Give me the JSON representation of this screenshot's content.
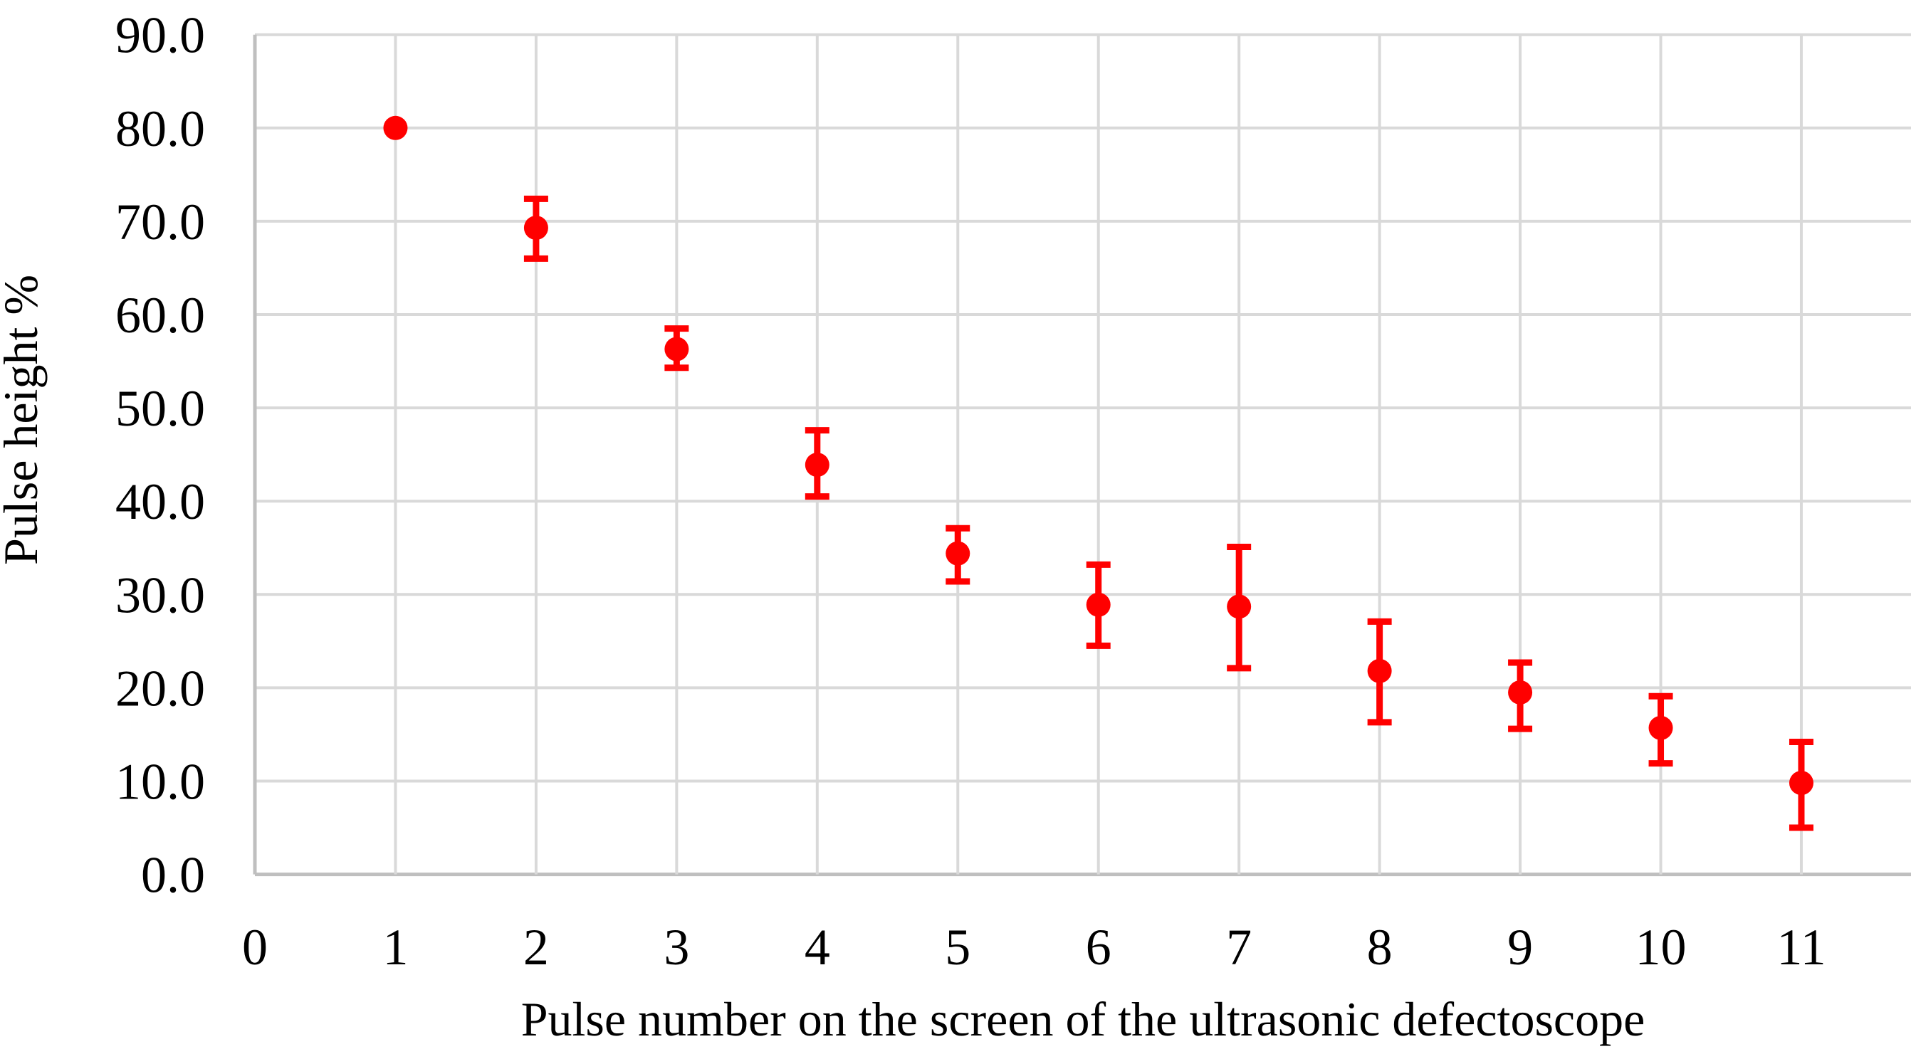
{
  "chart_data": {
    "type": "scatter",
    "title": "",
    "xlabel": "Pulse number on the screen of the ultrasonic defectoscope",
    "ylabel": "Pulse height %",
    "x_ticks": [
      0,
      1,
      2,
      3,
      4,
      5,
      6,
      7,
      8,
      9,
      10,
      11
    ],
    "y_ticks": [
      0,
      10,
      20,
      30,
      40,
      50,
      60,
      70,
      80,
      90
    ],
    "y_tick_format": "one-decimal",
    "xlim": [
      0,
      11.78
    ],
    "ylim": [
      0,
      90
    ],
    "grid": true,
    "legend": false,
    "colors": {
      "marker": "#FF0000",
      "gridline": "#D9D9D9",
      "axis_line": "#BFBFBF",
      "text": "#000000",
      "background": "#FFFFFF"
    },
    "series": [
      {
        "name": "pulse-height-measurements",
        "color": "#FF0000",
        "points": [
          {
            "x": 1,
            "y": 80.0,
            "err_up": 0.0,
            "err_down": 0.0
          },
          {
            "x": 2,
            "y": 69.3,
            "err_up": 3.1,
            "err_down": 3.3
          },
          {
            "x": 3,
            "y": 56.3,
            "err_up": 2.2,
            "err_down": 2.0
          },
          {
            "x": 4,
            "y": 43.9,
            "err_up": 3.7,
            "err_down": 3.4
          },
          {
            "x": 5,
            "y": 34.4,
            "err_up": 2.7,
            "err_down": 3.0
          },
          {
            "x": 6,
            "y": 28.9,
            "err_up": 4.3,
            "err_down": 4.4
          },
          {
            "x": 7,
            "y": 28.7,
            "err_up": 6.4,
            "err_down": 6.6
          },
          {
            "x": 8,
            "y": 21.8,
            "err_up": 5.3,
            "err_down": 5.5
          },
          {
            "x": 9,
            "y": 19.5,
            "err_up": 3.2,
            "err_down": 3.9
          },
          {
            "x": 10,
            "y": 15.7,
            "err_up": 3.4,
            "err_down": 3.8
          },
          {
            "x": 11,
            "y": 9.8,
            "err_up": 4.4,
            "err_down": 4.8
          }
        ]
      }
    ]
  }
}
